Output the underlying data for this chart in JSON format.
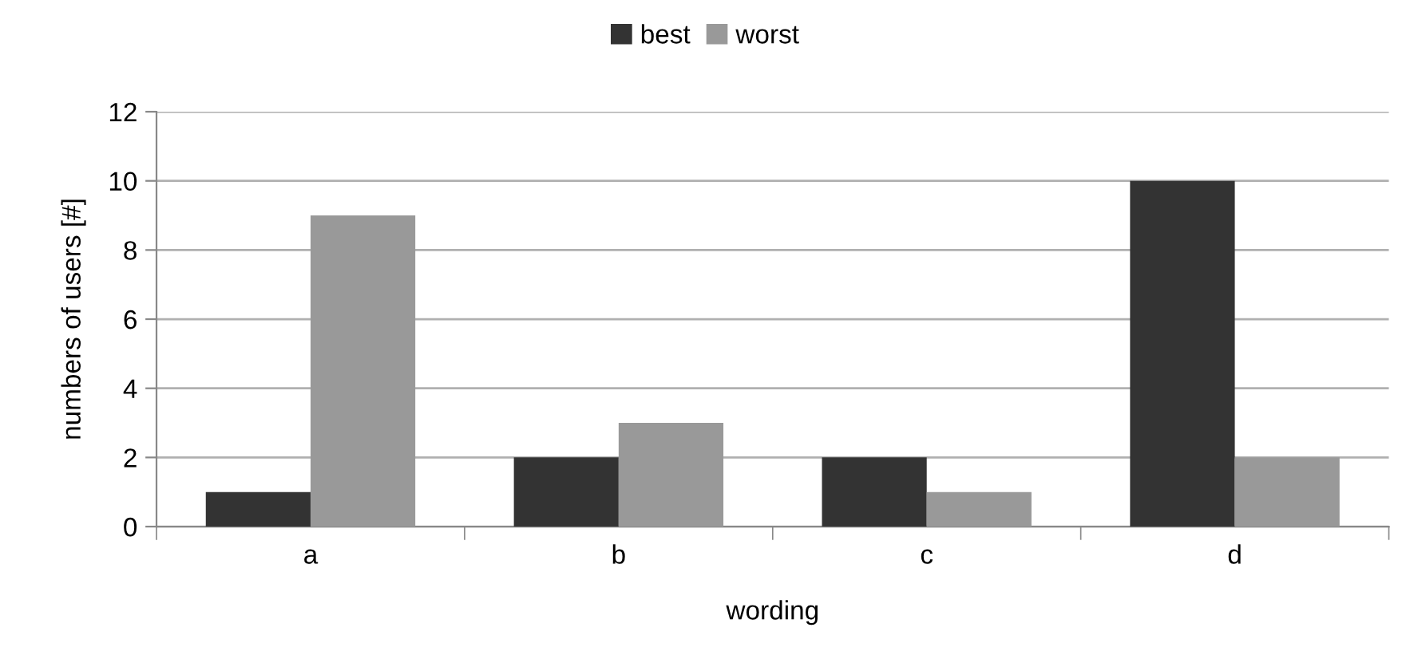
{
  "chart_data": {
    "type": "bar",
    "xlabel": "wording",
    "ylabel": "numbers of users [#]",
    "categories": [
      "a",
      "b",
      "c",
      "d"
    ],
    "series": [
      {
        "name": "best",
        "color": "#333333",
        "values": [
          1,
          2,
          2,
          10
        ]
      },
      {
        "name": "worst",
        "color": "#999999",
        "values": [
          9,
          3,
          1,
          2
        ]
      }
    ],
    "ylim": [
      0,
      12
    ],
    "yticks": [
      0,
      2,
      4,
      6,
      8,
      10,
      12
    ],
    "grid": "y",
    "legend": "top"
  }
}
